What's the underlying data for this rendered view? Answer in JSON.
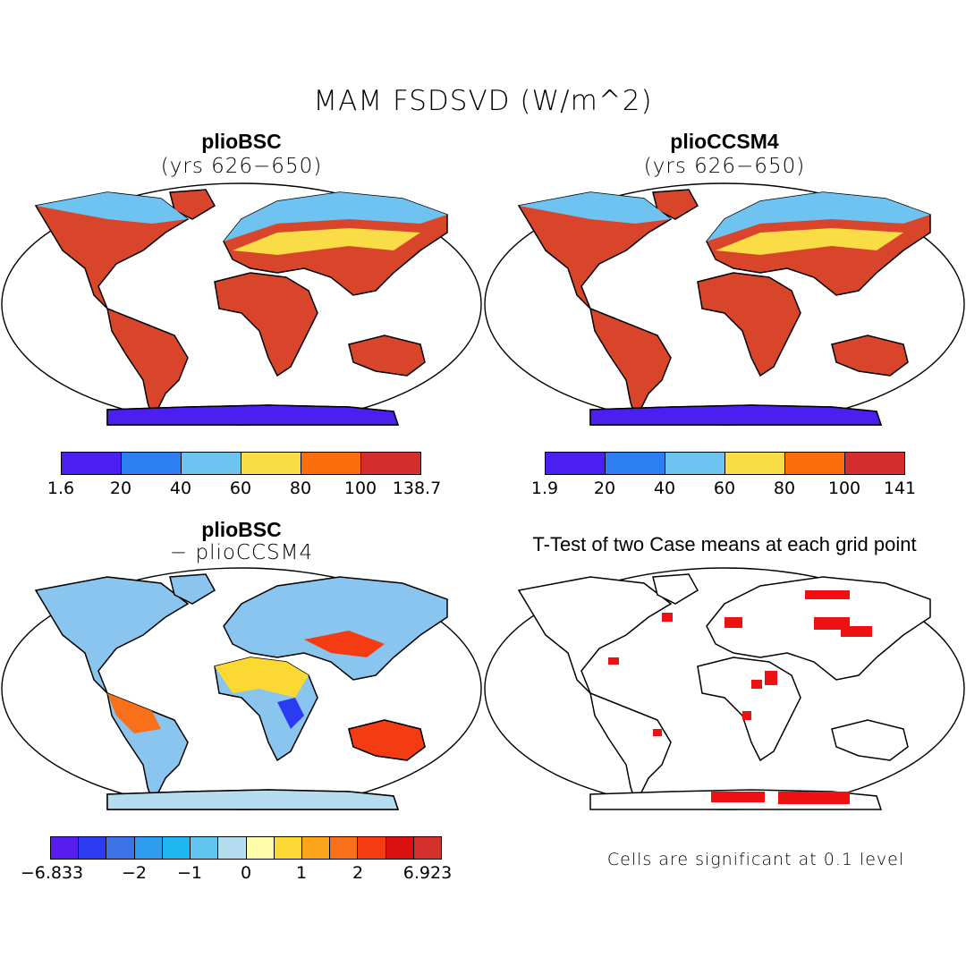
{
  "title": "MAM FSDSVD (W/m^2)",
  "panels": {
    "bsc": {
      "title": "plioBSC",
      "subtitle": "(yrs 626−650)"
    },
    "ccsm4": {
      "title": "plioCCSM4",
      "subtitle": "(yrs 626−650)"
    },
    "diff": {
      "title": "plioBSC",
      "subtitle": "− plioCCSM4"
    },
    "ttest": {
      "title": "T-Test of two Case means at each grid point",
      "note": "Cells are significant at 0.1 level"
    }
  },
  "colorbars": {
    "bsc": {
      "colors": [
        "#4b1ff0",
        "#2b7ff0",
        "#6ec3f0",
        "#fadd46",
        "#fa6f0c",
        "#d32d2d"
      ],
      "labels": [
        "1.6",
        "20",
        "40",
        "60",
        "80",
        "100",
        "138.7"
      ]
    },
    "ccsm4": {
      "colors": [
        "#4b1ff0",
        "#2b7ff0",
        "#6ec3f0",
        "#fadd46",
        "#fa6f0c",
        "#d32d2d"
      ],
      "labels": [
        "1.9",
        "20",
        "40",
        "60",
        "80",
        "100",
        "141"
      ]
    },
    "diff": {
      "colors": [
        "#5a1df0",
        "#2b3cf0",
        "#3e73e8",
        "#2f9ef0",
        "#1fb5f0",
        "#60c6f0",
        "#b6dcef",
        "#fefca8",
        "#fcd832",
        "#fca41a",
        "#f8711a",
        "#f43b12",
        "#db1010",
        "#d3302d"
      ],
      "labels": [
        "−6.833",
        "−2",
        "−1",
        "0",
        "1",
        "2",
        "6.923"
      ]
    }
  },
  "chart_data": [
    {
      "type": "heatmap",
      "title": "plioBSC (yrs 626−650)",
      "variable": "MAM FSDSVD (W/m^2)",
      "range": [
        1.6,
        138.7
      ],
      "levels": [
        1.6,
        20,
        40,
        60,
        80,
        100,
        138.7
      ]
    },
    {
      "type": "heatmap",
      "title": "plioCCSM4 (yrs 626−650)",
      "variable": "MAM FSDSVD (W/m^2)",
      "range": [
        1.9,
        141
      ],
      "levels": [
        1.9,
        20,
        40,
        60,
        80,
        100,
        141
      ]
    },
    {
      "type": "heatmap",
      "title": "plioBSC − plioCCSM4",
      "range": [
        -6.833,
        6.923
      ],
      "labeled_levels": [
        -6.833,
        -2,
        -1,
        0,
        1,
        2,
        6.923
      ]
    },
    {
      "type": "heatmap",
      "title": "T-Test of two Case means at each grid point",
      "significance_level": 0.1
    }
  ]
}
